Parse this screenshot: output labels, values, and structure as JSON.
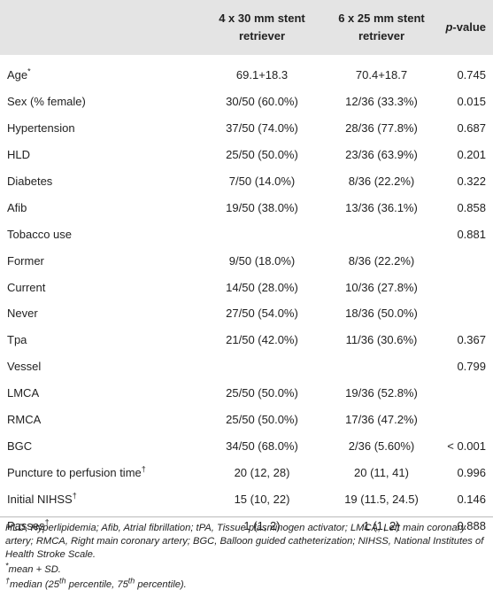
{
  "table": {
    "header": [
      null,
      "4 x 30 mm stent retriever",
      "6 x 25 mm stent retriever",
      [
        {
          "text": "p",
          "italic": true
        },
        {
          "text": "-value"
        }
      ]
    ],
    "rows": [
      {
        "label": "Age",
        "mark": "*",
        "values": [
          "69.1+18.3",
          "70.4+18.7",
          "0.745"
        ]
      },
      {
        "label": "Sex (% female)",
        "values": [
          "30/50 (60.0%)",
          "12/36 (33.3%)",
          "0.015"
        ]
      },
      {
        "label": "Hypertension",
        "values": [
          "37/50 (74.0%)",
          "28/36 (77.8%)",
          "0.687"
        ]
      },
      {
        "label": "HLD",
        "values": [
          "25/50 (50.0%)",
          "23/36 (63.9%)",
          "0.201"
        ]
      },
      {
        "label": "Diabetes",
        "values": [
          "7/50 (14.0%)",
          "8/36 (22.2%)",
          "0.322"
        ]
      },
      {
        "label": "Afib",
        "values": [
          "19/50 (38.0%)",
          "13/36 (36.1%)",
          "0.858"
        ]
      },
      {
        "label": "Tobacco use",
        "values": [
          null,
          null,
          "0.881"
        ]
      },
      {
        "label": "Former",
        "values": [
          "9/50 (18.0%)",
          "8/36 (22.2%)",
          null
        ]
      },
      {
        "label": "Current",
        "values": [
          "14/50 (28.0%)",
          "10/36 (27.8%)",
          null
        ]
      },
      {
        "label": "Never",
        "values": [
          "27/50 (54.0%)",
          "18/36 (50.0%)",
          null
        ]
      },
      {
        "label": "Tpa",
        "values": [
          "21/50 (42.0%)",
          "11/36 (30.6%)",
          "0.367"
        ]
      },
      {
        "label": "Vessel",
        "values": [
          null,
          null,
          "0.799"
        ]
      },
      {
        "label": "LMCA",
        "values": [
          "25/50 (50.0%)",
          "19/36 (52.8%)",
          null
        ]
      },
      {
        "label": "RMCA",
        "values": [
          "25/50 (50.0%)",
          "17/36 (47.2%)",
          null
        ]
      },
      {
        "label": "BGC",
        "values": [
          "34/50 (68.0%)",
          "2/36 (5.60%)",
          "< 0.001"
        ]
      },
      {
        "label": "Puncture to perfusion time",
        "mark": "†",
        "values": [
          "20 (12, 28)",
          "20 (11, 41)",
          "0.996"
        ]
      },
      {
        "label": "Initial NIHSS",
        "mark": "†",
        "values": [
          "15 (10, 22)",
          "19 (11.5, 24.5)",
          "0.146"
        ]
      },
      {
        "label": "Passes",
        "mark": "†",
        "values": [
          "1 (1, 2)",
          "1 (1, 2)",
          "0.888"
        ]
      }
    ]
  },
  "footnotes": [
    [
      {
        "text": "HLD, Hyperlipidemia; Afib, Atrial fibrillation; tPA, Tissue plasminogen activator; LMCA, Left main coronary artery; RMCA, Right main coronary artery; BGC, Balloon guided catheterization; NIHSS, National Institutes of Health Stroke Scale."
      }
    ],
    [
      {
        "text": "*",
        "sup": true
      },
      {
        "text": "mean + SD."
      }
    ],
    [
      {
        "text": "†",
        "sup": true
      },
      {
        "text": "median (25"
      },
      {
        "text": "th",
        "sup": true
      },
      {
        "text": " percentile, 75"
      },
      {
        "text": "th",
        "sup": true
      },
      {
        "text": " percentile)."
      }
    ]
  ]
}
